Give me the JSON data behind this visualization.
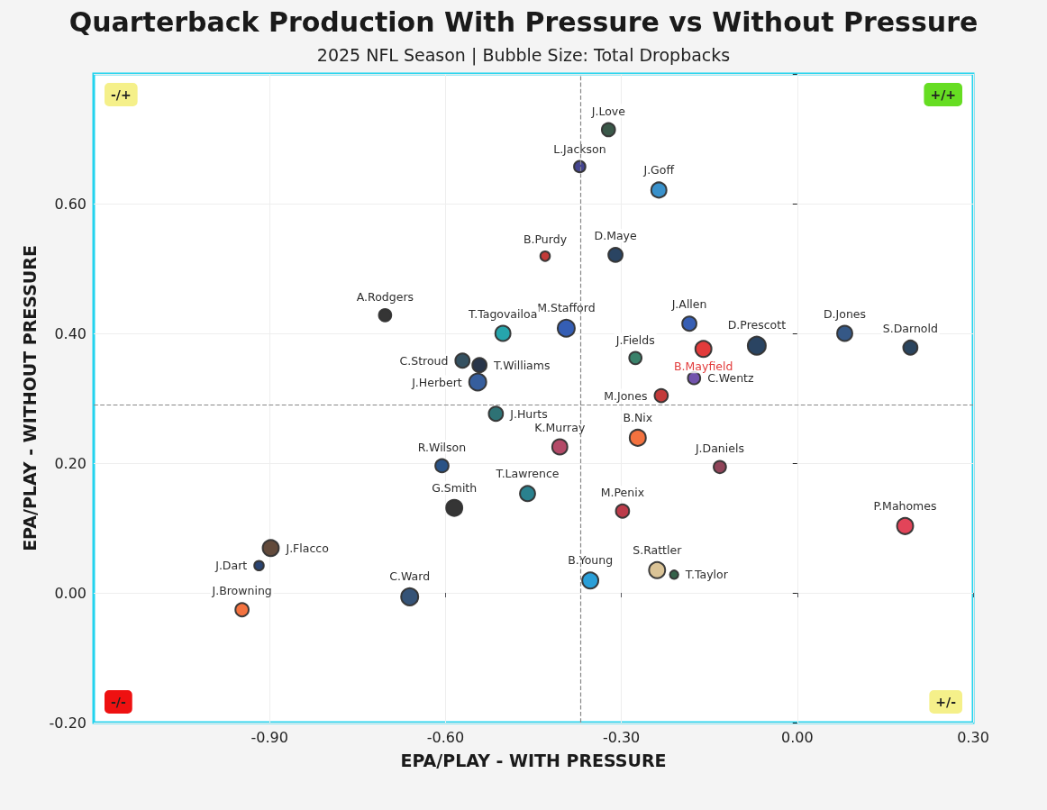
{
  "chart_data": {
    "type": "bubble",
    "title": "Quarterback Production With Pressure vs Without Pressure",
    "subtitle": "2025 NFL Season | Bubble Size: Total Dropbacks",
    "xlabel": "EPA/PLAY - WITH PRESSURE",
    "ylabel": "EPA/PLAY - WITHOUT PRESSURE",
    "xlim": [
      -1.2,
      0.3
    ],
    "xticks": [
      {
        "value": -0.9,
        "label": "-0.90"
      },
      {
        "value": -0.6,
        "label": "-0.60"
      },
      {
        "value": -0.3,
        "label": "-0.30"
      },
      {
        "value": 0,
        "label": "0.00"
      },
      {
        "value": 0.3,
        "label": "0.30"
      }
    ],
    "ylim": [
      -0.2,
      0.8
    ],
    "yticks": [
      {
        "value": -0.2,
        "label": "-0.20"
      },
      {
        "value": 0,
        "label": "0.00"
      },
      {
        "value": 0.2,
        "label": "0.20"
      },
      {
        "value": 0.4,
        "label": "0.40"
      },
      {
        "value": 0.6,
        "label": "0.60"
      },
      {
        "value": 0.8,
        "label": null
      }
    ],
    "grid": true,
    "legend": false,
    "ref_lines": [
      {
        "axis": "x",
        "value": -0.373,
        "color": "#888888",
        "line_style": "dashed"
      },
      {
        "axis": "y",
        "value": 0.288,
        "color": "#888888",
        "line_style": "dashed"
      }
    ],
    "annotations": [
      "-/+",
      "+/+",
      "-/-",
      "+/-"
    ],
    "series": [
      {
        "name": "J.Love",
        "color": "#2f4f3f",
        "x": [
          -0.322
        ],
        "values": [
          0.714
        ],
        "sizes": [
          0.54
        ]
      },
      {
        "name": "L.Jackson",
        "color": "#3b3b8a",
        "x": [
          -0.371
        ],
        "values": [
          0.657
        ],
        "sizes": [
          0.4
        ]
      },
      {
        "name": "J.Goff",
        "color": "#2e8bc8",
        "x": [
          -0.236
        ],
        "values": [
          0.621
        ],
        "sizes": [
          0.71
        ]
      },
      {
        "name": "B.Purdy",
        "color": "#c0302e",
        "x": [
          -0.43
        ],
        "values": [
          0.519
        ],
        "sizes": [
          0.28
        ]
      },
      {
        "name": "D.Maye",
        "color": "#1f3a5a",
        "x": [
          -0.31
        ],
        "values": [
          0.521
        ],
        "sizes": [
          0.62
        ]
      },
      {
        "name": "A.Rodgers",
        "color": "#2a2a2a",
        "x": [
          -0.703
        ],
        "values": [
          0.428
        ],
        "sizes": [
          0.47
        ]
      },
      {
        "name": "M.Stafford",
        "color": "#2a55b0",
        "x": [
          -0.394
        ],
        "values": [
          0.408
        ],
        "sizes": [
          0.9
        ]
      },
      {
        "name": "T.Tagovailoa",
        "color": "#1aa0a8",
        "x": [
          -0.502
        ],
        "values": [
          0.4
        ],
        "sizes": [
          0.71
        ]
      },
      {
        "name": "C.Stroud",
        "color": "#2a4858",
        "x": [
          -0.571
        ],
        "values": [
          0.358
        ],
        "sizes": [
          0.62
        ]
      },
      {
        "name": "T.Williams",
        "color": "#1c2a40",
        "x": [
          -0.542
        ],
        "values": [
          0.351
        ],
        "sizes": [
          0.62
        ]
      },
      {
        "name": "J.Herbert",
        "color": "#2b5598",
        "x": [
          -0.545
        ],
        "values": [
          0.325
        ],
        "sizes": [
          0.9
        ]
      },
      {
        "name": "J.Hurts",
        "color": "#236a6e",
        "x": [
          -0.514
        ],
        "values": [
          0.276
        ],
        "sizes": [
          0.62
        ]
      },
      {
        "name": "J.Allen",
        "color": "#2b55b0",
        "x": [
          -0.184
        ],
        "values": [
          0.415
        ],
        "sizes": [
          0.62
        ]
      },
      {
        "name": "B.Mayfield",
        "color": "#e03030",
        "x": [
          -0.16
        ],
        "values": [
          0.376
        ],
        "sizes": [
          0.8
        ]
      },
      {
        "name": "D.Prescott",
        "color": "#1f3a5a",
        "x": [
          -0.069
        ],
        "values": [
          0.381
        ],
        "sizes": [
          1
        ]
      },
      {
        "name": "D.Jones",
        "color": "#2a4f80",
        "x": [
          0.081
        ],
        "values": [
          0.4
        ],
        "sizes": [
          0.71
        ]
      },
      {
        "name": "S.Darnold",
        "color": "#1f3a55",
        "x": [
          0.193
        ],
        "values": [
          0.378
        ],
        "sizes": [
          0.62
        ]
      },
      {
        "name": "J.Fields",
        "color": "#2e7a62",
        "x": [
          -0.276
        ],
        "values": [
          0.362
        ],
        "sizes": [
          0.47
        ]
      },
      {
        "name": "M.Jones",
        "color": "#c03030",
        "x": [
          -0.232
        ],
        "values": [
          0.304
        ],
        "sizes": [
          0.54
        ]
      },
      {
        "name": "C.Wentz",
        "color": "#6a4aa8",
        "x": [
          -0.176
        ],
        "values": [
          0.331
        ],
        "sizes": [
          0.47
        ]
      },
      {
        "name": "K.Murray",
        "color": "#b04060",
        "x": [
          -0.405
        ],
        "values": [
          0.225
        ],
        "sizes": [
          0.71
        ]
      },
      {
        "name": "B.Nix",
        "color": "#f26a35",
        "x": [
          -0.272
        ],
        "values": [
          0.239
        ],
        "sizes": [
          0.8
        ]
      },
      {
        "name": "J.Daniels",
        "color": "#8a3a50",
        "x": [
          -0.132
        ],
        "values": [
          0.194
        ],
        "sizes": [
          0.47
        ]
      },
      {
        "name": "R.Wilson",
        "color": "#1f4a80",
        "x": [
          -0.606
        ],
        "values": [
          0.196
        ],
        "sizes": [
          0.54
        ]
      },
      {
        "name": "G.Smith",
        "color": "#2a2a2a",
        "x": [
          -0.585
        ],
        "values": [
          0.131
        ],
        "sizes": [
          0.8
        ]
      },
      {
        "name": "T.Lawrence",
        "color": "#1f7a88",
        "x": [
          -0.46
        ],
        "values": [
          0.153
        ],
        "sizes": [
          0.71
        ]
      },
      {
        "name": "M.Penix",
        "color": "#b83040",
        "x": [
          -0.298
        ],
        "values": [
          0.126
        ],
        "sizes": [
          0.54
        ]
      },
      {
        "name": "P.Mahomes",
        "color": "#e03a50",
        "x": [
          0.184
        ],
        "values": [
          0.103
        ],
        "sizes": [
          0.8
        ]
      },
      {
        "name": "J.Dart",
        "color": "#1f3a6a",
        "x": [
          -0.918
        ],
        "values": [
          0.042
        ],
        "sizes": [
          0.28
        ]
      },
      {
        "name": "J.Flacco",
        "color": "#5a4030",
        "x": [
          -0.898
        ],
        "values": [
          0.069
        ],
        "sizes": [
          0.8
        ]
      },
      {
        "name": "C.Ward",
        "color": "#2a4a70",
        "x": [
          -0.661
        ],
        "values": [
          -0.006
        ],
        "sizes": [
          0.9
        ]
      },
      {
        "name": "J.Browning",
        "color": "#f26a35",
        "x": [
          -0.947
        ],
        "values": [
          -0.026
        ],
        "sizes": [
          0.54
        ]
      },
      {
        "name": "B.Young",
        "color": "#1f9ad6",
        "x": [
          -0.353
        ],
        "values": [
          0.019
        ],
        "sizes": [
          0.8
        ]
      },
      {
        "name": "S.Rattler",
        "color": "#d8c090",
        "x": [
          -0.239
        ],
        "values": [
          0.035
        ],
        "sizes": [
          0.8
        ]
      },
      {
        "name": "T.Taylor",
        "color": "#2a5a40",
        "x": [
          -0.21
        ],
        "values": [
          0.028
        ],
        "sizes": [
          0.22
        ]
      }
    ]
  }
}
